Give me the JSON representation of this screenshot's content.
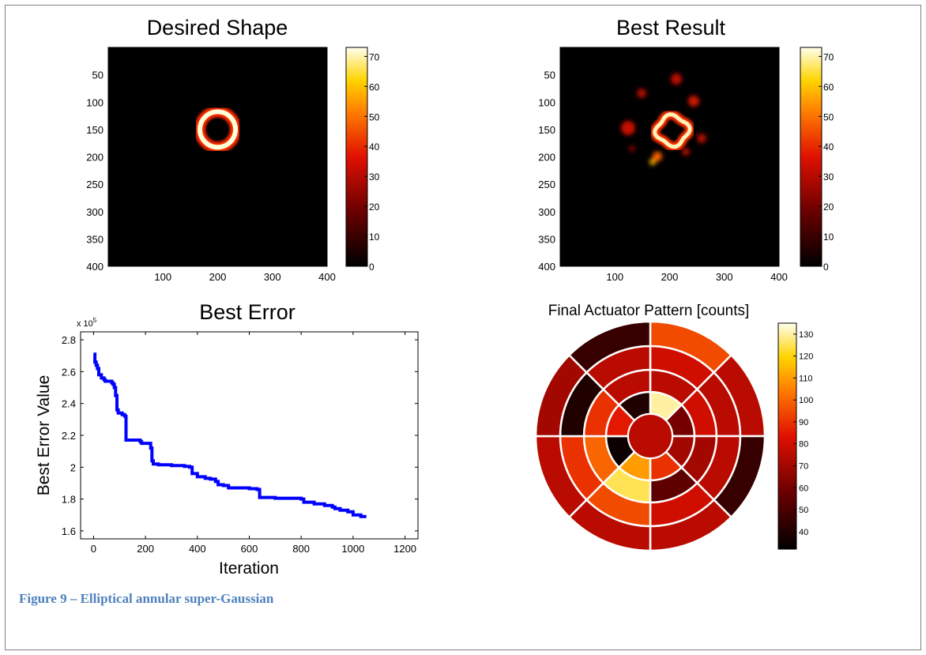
{
  "caption": "Figure 9 – Elliptical annular super-Gaussian",
  "colors": {
    "map_low": "#000000",
    "map_mid": "#e01000",
    "map_high": "#ffff80",
    "line": "#0000ff"
  },
  "chart_data": [
    {
      "type": "heatmap",
      "title": "Desired Shape",
      "xlim": [
        0,
        400
      ],
      "ylim": [
        400,
        0
      ],
      "x_ticks": [
        100,
        200,
        300,
        400
      ],
      "y_ticks": [
        50,
        100,
        150,
        200,
        250,
        300,
        350,
        400
      ],
      "colorbar": {
        "min": 0,
        "max": 73,
        "ticks": [
          0,
          10,
          20,
          30,
          40,
          50,
          60,
          70
        ]
      },
      "features": [
        {
          "kind": "ring",
          "cx": 200,
          "cy": 150,
          "r_inner": 25,
          "r_outer": 40,
          "value": 73
        }
      ]
    },
    {
      "type": "heatmap",
      "title": "Best Result",
      "xlim": [
        0,
        400
      ],
      "ylim": [
        400,
        0
      ],
      "x_ticks": [
        100,
        200,
        300,
        400
      ],
      "y_ticks": [
        50,
        100,
        150,
        200,
        250,
        300,
        350,
        400
      ],
      "colorbar": {
        "min": 0,
        "max": 73,
        "ticks": [
          0,
          10,
          20,
          30,
          40,
          50,
          60,
          70
        ]
      },
      "features": [
        {
          "kind": "ring",
          "cx": 205,
          "cy": 152,
          "r_inner": 22,
          "r_outer": 36,
          "value": 70
        }
      ]
    },
    {
      "type": "line",
      "title": "Best Error",
      "xlabel": "Iteration",
      "ylabel": "Best Error Value",
      "y_exponent": "x 10",
      "y_exponent_power": "5",
      "xlim": [
        -50,
        1250
      ],
      "ylim": [
        1.55,
        2.85
      ],
      "x_ticks": [
        0,
        200,
        400,
        600,
        800,
        1000,
        1200
      ],
      "y_ticks": [
        1.6,
        1.8,
        2,
        2.2,
        2.4,
        2.6,
        2.8
      ],
      "y_tick_labels": [
        "1.6",
        "1.8",
        "2",
        "2.2",
        "2.4",
        "2.6",
        "2.8"
      ],
      "series": [
        {
          "x": [
            0,
            5,
            10,
            15,
            20,
            30,
            40,
            45,
            70,
            75,
            80,
            85,
            90,
            95,
            110,
            120,
            125,
            135,
            140,
            180,
            185,
            220,
            225,
            230,
            250,
            300,
            350,
            370,
            380,
            400,
            430,
            450,
            470,
            480,
            500,
            520,
            600,
            630,
            640,
            700,
            800,
            810,
            850,
            890,
            920,
            930,
            950,
            980,
            1000,
            1030,
            1045
          ],
          "y": [
            2.71,
            2.66,
            2.64,
            2.62,
            2.58,
            2.56,
            2.55,
            2.54,
            2.53,
            2.52,
            2.5,
            2.45,
            2.36,
            2.34,
            2.33,
            2.32,
            2.17,
            2.17,
            2.17,
            2.16,
            2.15,
            2.12,
            2.04,
            2.02,
            2.015,
            2.01,
            2.005,
            2.0,
            1.96,
            1.94,
            1.93,
            1.925,
            1.91,
            1.89,
            1.885,
            1.87,
            1.865,
            1.86,
            1.81,
            1.805,
            1.8,
            1.78,
            1.77,
            1.76,
            1.75,
            1.74,
            1.73,
            1.72,
            1.7,
            1.69,
            1.68
          ]
        }
      ]
    },
    {
      "type": "polar_heatmap",
      "title": "Final Actuator Pattern [counts]",
      "colorbar": {
        "min": 32,
        "max": 135,
        "ticks": [
          40,
          50,
          60,
          70,
          80,
          90,
          100,
          110,
          120,
          130
        ]
      },
      "center_value": 75,
      "rings": [
        {
          "name": "ring1",
          "values": [
            130,
            60,
            70,
            90,
            110,
            35,
            85,
            40
          ]
        },
        {
          "name": "ring2",
          "values": [
            75,
            80,
            70,
            55,
            125,
            100,
            90,
            75
          ]
        },
        {
          "name": "ring3",
          "values": [
            80,
            75,
            75,
            80,
            95,
            90,
            40,
            75
          ]
        },
        {
          "name": "ring4",
          "values": [
            95,
            75,
            45,
            75,
            75,
            75,
            70,
            45
          ]
        }
      ]
    }
  ]
}
